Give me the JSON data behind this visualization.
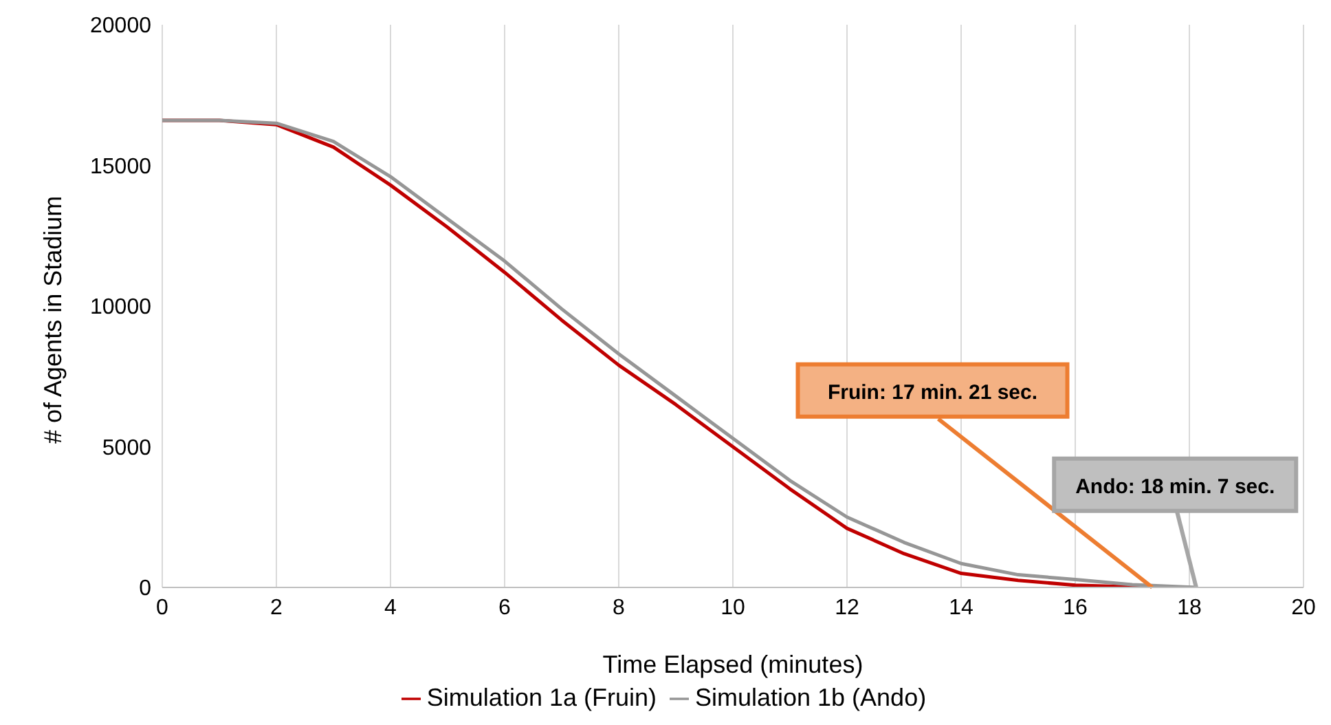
{
  "chart_data": {
    "type": "line",
    "xlabel": "Time Elapsed (minutes)",
    "ylabel": "# of Agents in Stadium",
    "xlim": [
      0,
      20
    ],
    "xticks": [
      0,
      2,
      4,
      6,
      8,
      10,
      12,
      14,
      16,
      18,
      20
    ],
    "ylim": [
      0,
      20000
    ],
    "yticks": [
      0,
      5000,
      10000,
      15000,
      20000
    ],
    "grid": "x",
    "legend": "bottom",
    "marker": "none",
    "line_style": "solid",
    "series": [
      {
        "name": "Simulation 1a (Fruin)",
        "color": "#c00000",
        "x": [
          0,
          1,
          2,
          3,
          4,
          5,
          6,
          7,
          8,
          9,
          10,
          11,
          12,
          13,
          14,
          15,
          16,
          17,
          17.35
        ],
        "values": [
          16600,
          16600,
          16450,
          15650,
          14300,
          12800,
          11200,
          9500,
          7900,
          6500,
          5000,
          3500,
          2100,
          1200,
          500,
          250,
          80,
          20,
          0
        ]
      },
      {
        "name": "Simulation 1b (Ando)",
        "color": "#969696",
        "x": [
          0,
          1,
          2,
          3,
          4,
          5,
          6,
          7,
          8,
          9,
          10,
          11,
          12,
          13,
          14,
          15,
          16,
          17,
          18.12
        ],
        "values": [
          16600,
          16600,
          16500,
          15850,
          14600,
          13100,
          11600,
          9900,
          8300,
          6800,
          5300,
          3800,
          2500,
          1600,
          850,
          450,
          280,
          100,
          0
        ]
      }
    ],
    "annotations": [
      {
        "text": "Fruin: 17 min. 21 sec.",
        "x": 17.35,
        "y": 0
      },
      {
        "text": "Ando: 18 min. 7 sec.",
        "x": 18.12,
        "y": 0
      }
    ]
  }
}
